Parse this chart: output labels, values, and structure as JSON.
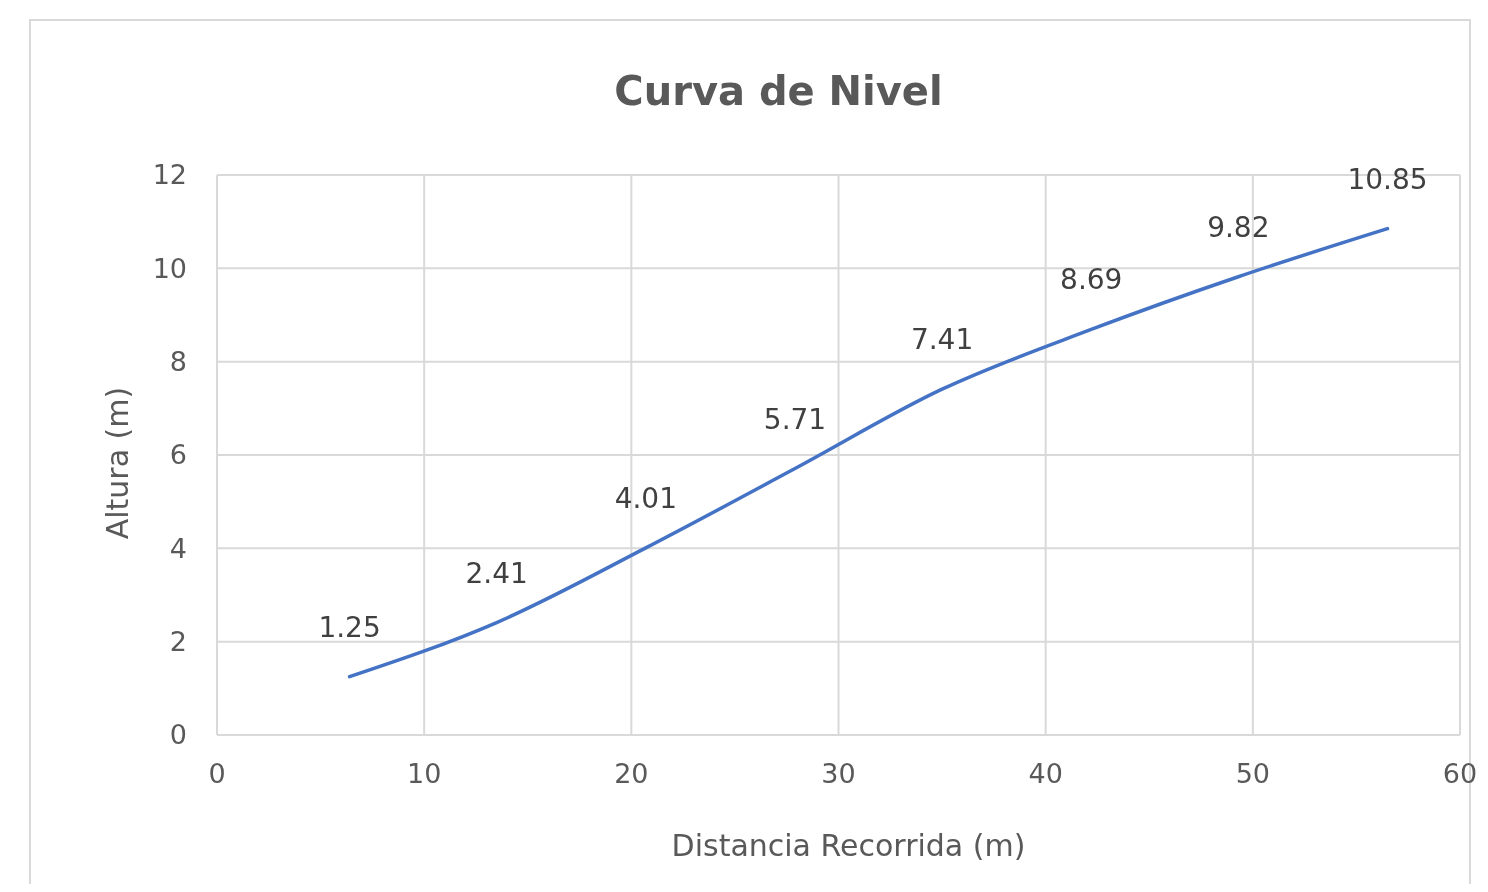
{
  "chart_data": {
    "type": "line",
    "title": "Curva de Nivel",
    "xlabel": "Distancia  Recorrida (m)",
    "ylabel": "Altura (m)",
    "x": [
      6.4,
      13.5,
      20.7,
      27.9,
      35.0,
      42.2,
      49.3,
      56.5
    ],
    "series": [
      {
        "color": "#4472c4",
        "values": [
          1.25,
          2.41,
          4.01,
          5.71,
          7.41,
          8.69,
          9.82,
          10.85
        ]
      }
    ],
    "xlim": [
      0,
      60
    ],
    "xticks": [
      0,
      10,
      20,
      30,
      40,
      50,
      60
    ],
    "ylim": [
      0,
      12
    ],
    "yticks": [
      0,
      2,
      4,
      6,
      8,
      10,
      12
    ],
    "grid": true,
    "data_labels": true,
    "marker": "none",
    "line_style": "solid"
  }
}
